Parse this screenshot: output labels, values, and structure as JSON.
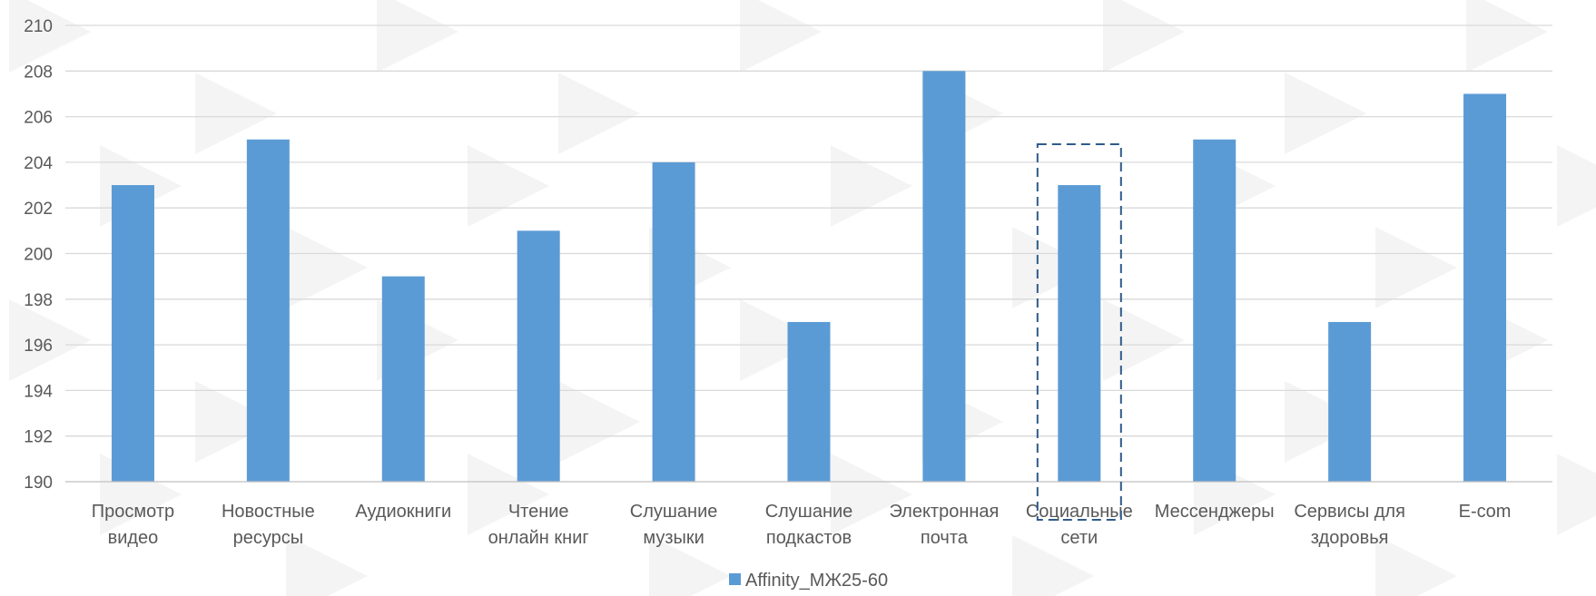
{
  "chart_data": {
    "type": "bar",
    "categories": [
      [
        "Просмотр",
        "видео"
      ],
      [
        "Новостные",
        "ресурсы"
      ],
      [
        "Аудиокниги"
      ],
      [
        "Чтение",
        "онлайн книг"
      ],
      [
        "Слушание",
        "музыки"
      ],
      [
        "Слушание",
        "подкастов"
      ],
      [
        "Электронная",
        "почта"
      ],
      [
        "Социальные",
        "сети"
      ],
      [
        "Мессенджеры"
      ],
      [
        "Сервисы для",
        "здоровья"
      ],
      [
        "E-com"
      ]
    ],
    "series": [
      {
        "name": "Affinity_МЖ25-60",
        "values": [
          203,
          205,
          199,
          201,
          204,
          197,
          208,
          203,
          205,
          197,
          207
        ],
        "color": "#5b9bd5"
      }
    ],
    "ylim": [
      190,
      210
    ],
    "yticks": [
      190,
      192,
      194,
      196,
      198,
      200,
      202,
      204,
      206,
      208,
      210
    ],
    "grid": true,
    "legend_position": "bottom",
    "highlighted_category_index": 7
  }
}
